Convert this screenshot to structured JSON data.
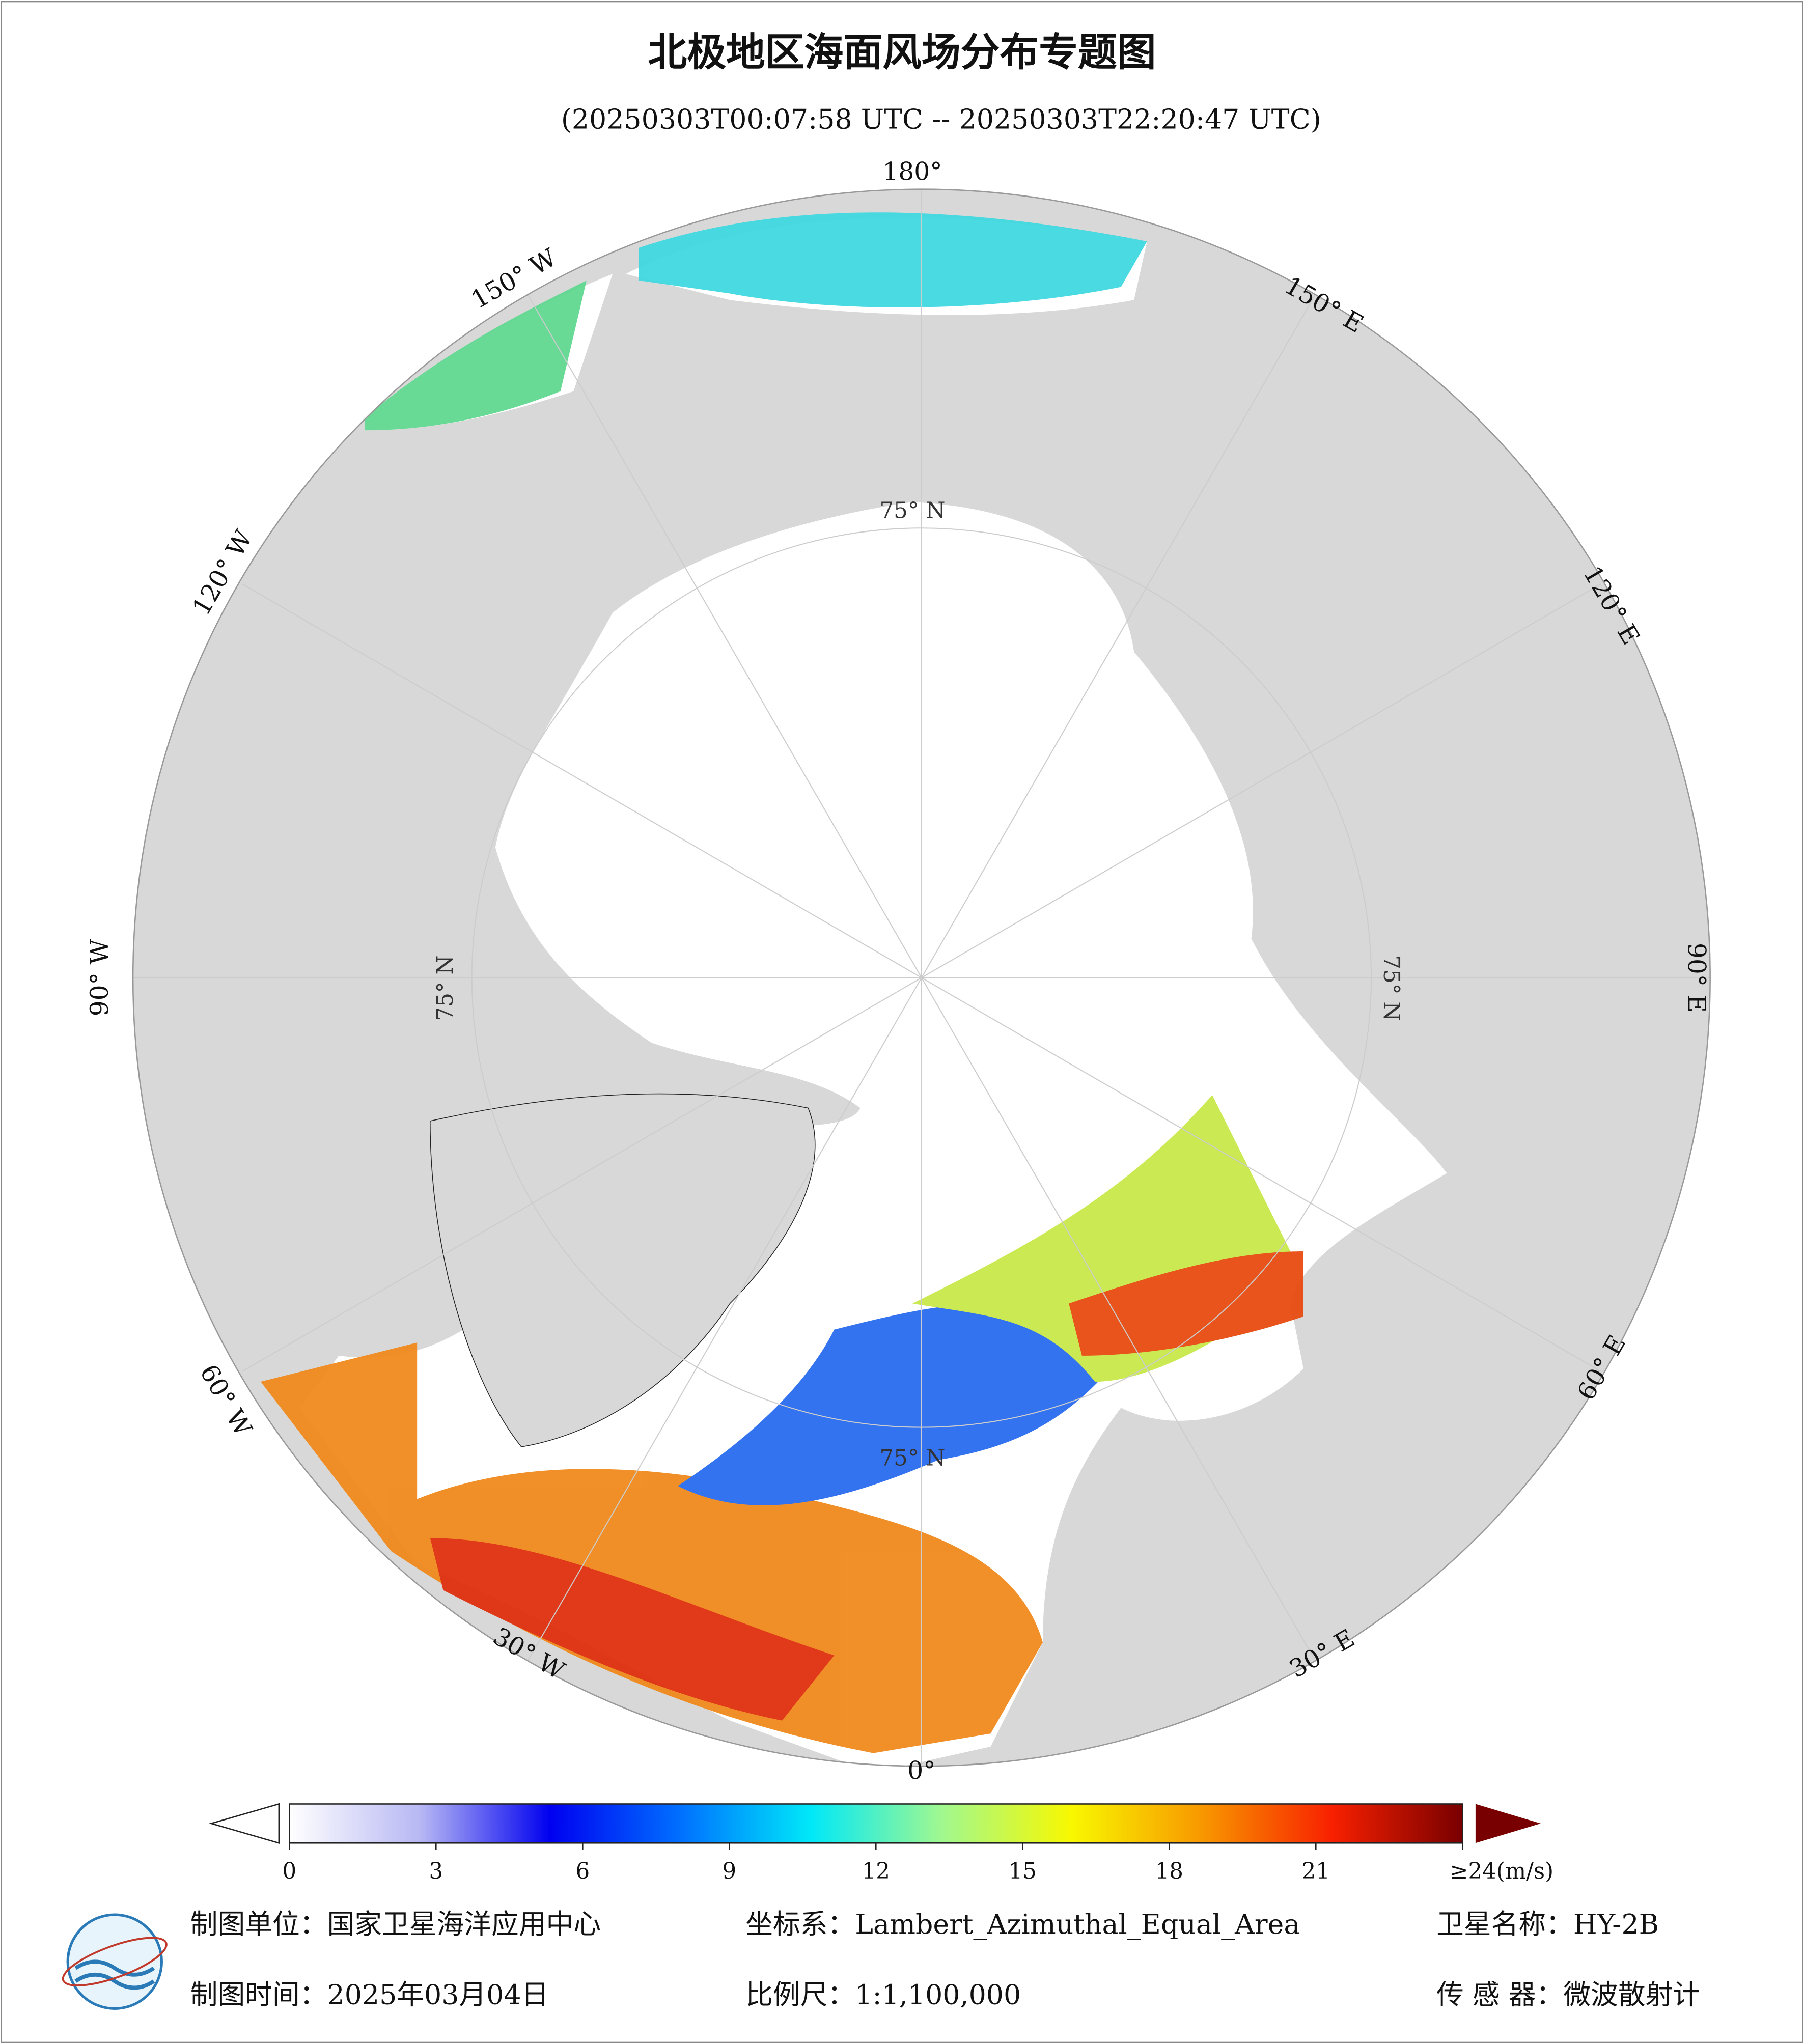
{
  "header": {
    "title": "北极地区海面风场分布专题图",
    "subtitle": "(20250303T00:07:58 UTC -- 20250303T22:20:47 UTC)"
  },
  "map": {
    "longitude_labels": [
      "180°",
      "150° E",
      "120° E",
      "90° E",
      "60° E",
      "30° E",
      "0°",
      "30° W",
      "60° W",
      "90° W",
      "120° W",
      "150° W"
    ],
    "latitude_labels": [
      "75° N",
      "75° N",
      "75° N",
      "75° N"
    ]
  },
  "colorbar": {
    "range": [
      0,
      24
    ],
    "ticks": [
      0,
      3,
      6,
      9,
      12,
      15,
      18,
      21,
      {
        "value": 24,
        "label": "≥24(m/s)"
      }
    ],
    "colors": [
      "#ffffff",
      "#b8b8f4",
      "#0000f0",
      "#0070ff",
      "#00e8f8",
      "#a0f890",
      "#f8f800",
      "#f89800",
      "#f82000",
      "#780000"
    ],
    "under_color": "#ffffff",
    "over_color": "#780000"
  },
  "footer": {
    "rows": [
      [
        "制图单位：国家卫星海洋应用中心",
        "坐标系：Lambert_Azimuthal_Equal_Area",
        "卫星名称：HY-2B"
      ],
      [
        "制图时间：2025年03月04日",
        "比例尺：1:1,100,000",
        "传 感 器：微波散射计"
      ]
    ]
  }
}
